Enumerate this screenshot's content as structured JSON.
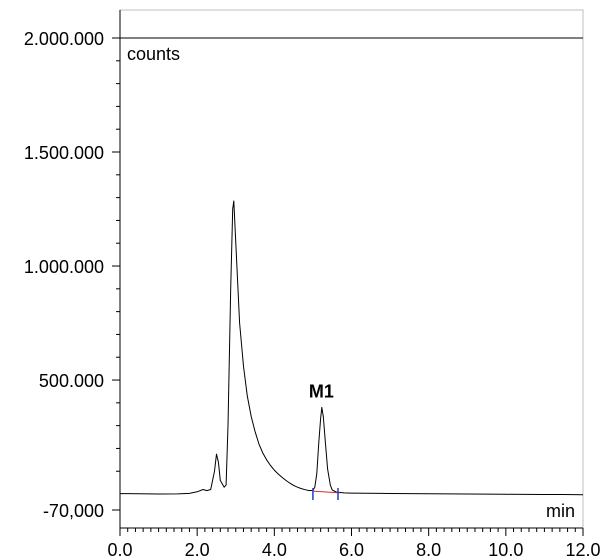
{
  "chart_data": {
    "type": "line",
    "x_unit_label": "min",
    "y_unit_label": "counts",
    "xlim": [
      0.0,
      12.0
    ],
    "ylim": [
      -70000,
      2000000
    ],
    "x_ticks": [
      0.0,
      2.0,
      4.0,
      6.0,
      8.0,
      10.0,
      12.0
    ],
    "x_tick_labels": [
      "0.0",
      "2.0",
      "4.0",
      "6.0",
      "8.0",
      "10.0",
      "12.0"
    ],
    "y_ticks": [
      -70000,
      500000,
      1000000,
      1500000,
      2000000
    ],
    "y_tick_labels": [
      "-70,000",
      "500.000",
      "1.000.000",
      "1.500.000",
      "2.000.000"
    ],
    "grid": false,
    "annotations": [
      {
        "text": "M1",
        "x": 5.22,
        "y": 380000
      }
    ],
    "series": [
      {
        "color": "#000000",
        "points": [
          [
            0.0,
            2000
          ],
          [
            0.5,
            1000
          ],
          [
            1.0,
            0
          ],
          [
            1.5,
            500
          ],
          [
            1.8,
            3000
          ],
          [
            2.0,
            10000
          ],
          [
            2.15,
            20000
          ],
          [
            2.25,
            15000
          ],
          [
            2.35,
            20000
          ],
          [
            2.45,
            100000
          ],
          [
            2.5,
            175000
          ],
          [
            2.55,
            140000
          ],
          [
            2.6,
            60000
          ],
          [
            2.7,
            30000
          ],
          [
            2.75,
            40000
          ],
          [
            2.8,
            300000
          ],
          [
            2.87,
            900000
          ],
          [
            2.92,
            1250000
          ],
          [
            2.95,
            1285000
          ],
          [
            3.0,
            1100000
          ],
          [
            3.1,
            750000
          ],
          [
            3.2,
            560000
          ],
          [
            3.3,
            430000
          ],
          [
            3.4,
            340000
          ],
          [
            3.5,
            275000
          ],
          [
            3.6,
            220000
          ],
          [
            3.7,
            180000
          ],
          [
            3.8,
            150000
          ],
          [
            3.9,
            125000
          ],
          [
            4.0,
            105000
          ],
          [
            4.1,
            88000
          ],
          [
            4.2,
            73000
          ],
          [
            4.3,
            60000
          ],
          [
            4.4,
            48000
          ],
          [
            4.5,
            38000
          ],
          [
            4.6,
            30000
          ],
          [
            4.7,
            24000
          ],
          [
            4.8,
            19000
          ],
          [
            4.9,
            15000
          ],
          [
            5.0,
            16000
          ],
          [
            5.05,
            30000
          ],
          [
            5.1,
            90000
          ],
          [
            5.15,
            220000
          ],
          [
            5.2,
            330000
          ],
          [
            5.23,
            380000
          ],
          [
            5.27,
            340000
          ],
          [
            5.32,
            230000
          ],
          [
            5.38,
            110000
          ],
          [
            5.45,
            40000
          ],
          [
            5.5,
            18000
          ],
          [
            5.6,
            9000
          ],
          [
            5.8,
            5000
          ],
          [
            6.0,
            4000
          ],
          [
            7.0,
            2500
          ],
          [
            8.0,
            1000
          ],
          [
            9.0,
            0
          ],
          [
            10.0,
            -1000
          ],
          [
            11.0,
            -2000
          ],
          [
            11.5,
            -2000
          ],
          [
            12.0,
            -3000
          ]
        ]
      }
    ],
    "baseline": {
      "color": "#d03030",
      "from": [
        5.0,
        13000
      ],
      "to": [
        5.7,
        5000
      ]
    },
    "integration_marks": [
      {
        "x": 5.0,
        "color": "#2040c0"
      },
      {
        "x": 5.65,
        "color": "#2040c0"
      }
    ]
  }
}
